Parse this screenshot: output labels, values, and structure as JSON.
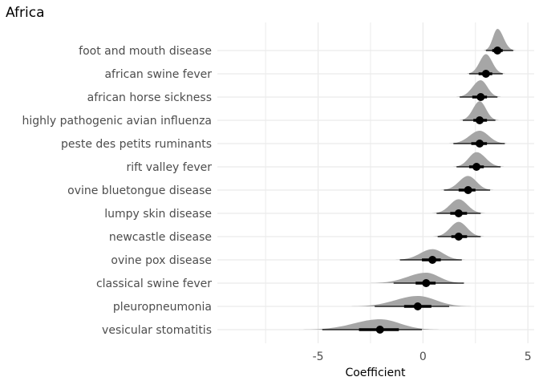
{
  "chart_data": {
    "type": "scatter",
    "subtype": "halfeye-interval",
    "title": "Africa",
    "xlabel": "Coefficient",
    "ylabel": "",
    "xlim": [
      -9.8,
      5.3
    ],
    "xticks": [
      -5,
      0,
      5
    ],
    "xtick_labels": [
      "-5",
      "0",
      "5"
    ],
    "grid": true,
    "legend": "none",
    "colors": {
      "density": "#a6a6a6",
      "point": "#000000",
      "grid": "#ebebeb"
    },
    "categories": [
      "foot and mouth disease",
      "african swine fever",
      "african horse sickness",
      "highly pathogenic avian influenza",
      "peste des petits ruminants",
      "rift valley fever",
      "ovine bluetongue disease",
      "lumpy skin disease",
      "newcastle disease",
      "ovine pox disease",
      "classical swine fever",
      "pleuropneumonia",
      "vesicular stomatitis"
    ],
    "estimates": [
      3.55,
      3.0,
      2.75,
      2.7,
      2.7,
      2.55,
      2.15,
      1.7,
      1.7,
      0.45,
      0.15,
      -0.25,
      -2.05
    ],
    "interval_66": [
      [
        3.3,
        3.8
      ],
      [
        2.65,
        3.3
      ],
      [
        2.35,
        3.05
      ],
      [
        2.4,
        3.05
      ],
      [
        2.3,
        3.05
      ],
      [
        2.2,
        2.9
      ],
      [
        1.7,
        2.5
      ],
      [
        1.3,
        2.1
      ],
      [
        1.35,
        2.1
      ],
      [
        -0.05,
        0.85
      ],
      [
        -0.35,
        0.6
      ],
      [
        -0.9,
        0.4
      ],
      [
        -3.05,
        -1.15
      ]
    ],
    "interval_95": [
      [
        3.0,
        4.3
      ],
      [
        2.2,
        3.8
      ],
      [
        1.75,
        3.55
      ],
      [
        1.9,
        3.45
      ],
      [
        1.45,
        3.9
      ],
      [
        1.6,
        3.7
      ],
      [
        1.0,
        3.2
      ],
      [
        0.65,
        2.75
      ],
      [
        0.7,
        2.75
      ],
      [
        -1.1,
        1.85
      ],
      [
        -1.4,
        1.95
      ],
      [
        -2.3,
        1.25
      ],
      [
        -4.8,
        -0.05
      ]
    ],
    "density_extent": [
      [
        2.9,
        4.4
      ],
      [
        2.1,
        3.9
      ],
      [
        1.6,
        3.7
      ],
      [
        1.75,
        3.6
      ],
      [
        1.25,
        4.0
      ],
      [
        1.45,
        3.85
      ],
      [
        0.85,
        3.35
      ],
      [
        0.45,
        2.95
      ],
      [
        0.5,
        2.9
      ],
      [
        -1.3,
        2.0
      ],
      [
        -2.5,
        2.0
      ],
      [
        -3.4,
        2.3
      ],
      [
        -5.7,
        0.75
      ]
    ]
  }
}
